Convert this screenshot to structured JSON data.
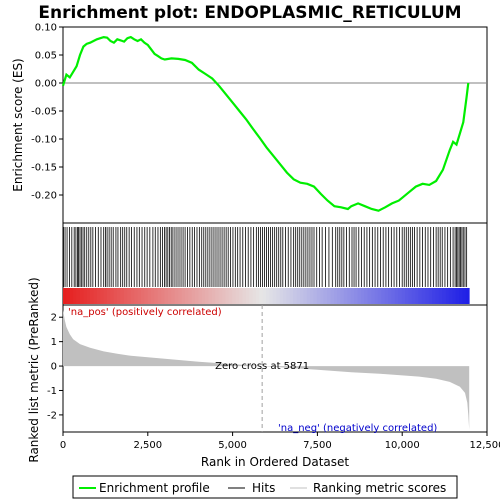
{
  "chart_data": {
    "title": "Enrichment plot: ENDOPLASMIC_RETICULUM",
    "top_panel": {
      "type": "line",
      "ylabel": "Enrichment score (ES)",
      "ylim": [
        -0.25,
        0.1
      ],
      "yticks": [
        "0.10",
        "0.05",
        "0.00",
        "-0.05",
        "-0.10",
        "-0.15",
        "-0.20"
      ],
      "ytick_values": [
        0.1,
        0.05,
        0.0,
        -0.05,
        -0.1,
        -0.15,
        -0.2
      ],
      "line_color": "#00ee00",
      "series": [
        {
          "name": "Enrichment profile",
          "x": [
            0,
            100,
            200,
            300,
            400,
            500,
            600,
            700,
            800,
            900,
            1000,
            1100,
            1200,
            1300,
            1400,
            1500,
            1600,
            1700,
            1800,
            1900,
            2000,
            2100,
            2200,
            2300,
            2400,
            2500,
            2600,
            2700,
            2800,
            2900,
            3000,
            3200,
            3400,
            3600,
            3800,
            4000,
            4200,
            4400,
            4600,
            4800,
            5000,
            5200,
            5400,
            5600,
            5800,
            6000,
            6200,
            6400,
            6600,
            6800,
            7000,
            7200,
            7400,
            7600,
            7800,
            8000,
            8200,
            8400,
            8500,
            8700,
            8900,
            9100,
            9300,
            9500,
            9700,
            9900,
            10000,
            10200,
            10400,
            10600,
            10800,
            11000,
            11200,
            11400,
            11500,
            11600,
            11700,
            11800,
            11900,
            11950
          ],
          "values": [
            -0.005,
            0.015,
            0.01,
            0.02,
            0.03,
            0.05,
            0.065,
            0.07,
            0.072,
            0.075,
            0.078,
            0.08,
            0.082,
            0.081,
            0.075,
            0.072,
            0.078,
            0.076,
            0.074,
            0.08,
            0.082,
            0.078,
            0.075,
            0.078,
            0.072,
            0.068,
            0.06,
            0.052,
            0.048,
            0.044,
            0.042,
            0.044,
            0.043,
            0.041,
            0.036,
            0.024,
            0.016,
            0.008,
            -0.005,
            -0.02,
            -0.035,
            -0.05,
            -0.065,
            -0.082,
            -0.098,
            -0.115,
            -0.13,
            -0.145,
            -0.16,
            -0.172,
            -0.178,
            -0.18,
            -0.185,
            -0.198,
            -0.21,
            -0.22,
            -0.222,
            -0.225,
            -0.22,
            -0.215,
            -0.22,
            -0.225,
            -0.228,
            -0.222,
            -0.215,
            -0.21,
            -0.205,
            -0.195,
            -0.185,
            -0.18,
            -0.182,
            -0.175,
            -0.155,
            -0.12,
            -0.105,
            -0.11,
            -0.09,
            -0.07,
            -0.025,
            0.0
          ]
        }
      ]
    },
    "hits_panel": {
      "hit_positions": [
        15,
        60,
        120,
        190,
        260,
        330,
        380,
        430,
        460,
        500,
        540,
        590,
        640,
        700,
        760,
        820,
        880,
        960,
        1040,
        1120,
        1200,
        1250,
        1300,
        1360,
        1420,
        1480,
        1560,
        1620,
        1700,
        1760,
        1820,
        1880,
        1950,
        2020,
        2100,
        2180,
        2250,
        2330,
        2410,
        2480,
        2560,
        2650,
        2720,
        2800,
        2870,
        2930,
        2990,
        3040,
        3090,
        3140,
        3190,
        3240,
        3300,
        3360,
        3420,
        3480,
        3540,
        3600,
        3670,
        3740,
        3810,
        3880,
        3950,
        4020,
        4090,
        4150,
        4210,
        4270,
        4330,
        4390,
        4450,
        4510,
        4570,
        4630,
        4690,
        4750,
        4810,
        4870,
        4940,
        5010,
        5080,
        5150,
        5220,
        5300,
        5380,
        5460,
        5540,
        5620,
        5700,
        5760,
        5820,
        5880,
        5940,
        6000,
        6060,
        6120,
        6180,
        6240,
        6300,
        6360,
        6420,
        6480,
        6560,
        6640,
        6720,
        6800,
        6860,
        6920,
        6980,
        7040,
        7100,
        7160,
        7220,
        7280,
        7340,
        7400,
        7480,
        7560,
        7640,
        7740,
        7840,
        7940,
        8040,
        8100,
        8160,
        8220,
        8280,
        8360,
        8440,
        8520,
        8580,
        8640,
        8720,
        8800,
        8880,
        8960,
        9040,
        9120,
        9200,
        9280,
        9360,
        9440,
        9520,
        9600,
        9680,
        9760,
        9840,
        9920,
        10000,
        10060,
        10120,
        10180,
        10240,
        10300,
        10360,
        10440,
        10520,
        10600,
        10680,
        10760,
        10840,
        10920,
        11000,
        11060,
        11120,
        11180,
        11260,
        11340,
        11420,
        11500,
        11560,
        11600,
        11640,
        11680,
        11720,
        11760,
        11800,
        11850,
        11900
      ]
    },
    "metric_panel": {
      "ylabel": "Ranked list metric (PreRanked)",
      "ylim": [
        -2.7,
        2.5
      ],
      "yticks": [
        "2",
        "1",
        "0",
        "-1",
        "-2"
      ],
      "ytick_values": [
        2,
        1,
        0,
        -1,
        -2
      ],
      "fill_color": "#c0c0c0",
      "x": [
        0,
        50,
        100,
        200,
        300,
        500,
        800,
        1200,
        1600,
        2000,
        3000,
        4000,
        5000,
        5871,
        6500,
        7500,
        8500,
        9500,
        10500,
        11000,
        11400,
        11700,
        11850,
        11920,
        11950,
        11976
      ],
      "values": [
        2.3,
        1.9,
        1.6,
        1.3,
        1.1,
        0.9,
        0.75,
        0.6,
        0.5,
        0.42,
        0.3,
        0.18,
        0.08,
        0.0,
        -0.06,
        -0.15,
        -0.25,
        -0.33,
        -0.43,
        -0.52,
        -0.65,
        -0.85,
        -1.1,
        -1.5,
        -2.0,
        -2.6
      ],
      "zero_cross_label": "Zero cross at 5871",
      "zero_cross_x": 5871,
      "pos_label": "'na_pos' (positively correlated)",
      "neg_label": "'na_neg' (negatively correlated)"
    },
    "x_axis": {
      "label": "Rank in Ordered Dataset",
      "xlim": [
        0,
        12500
      ],
      "ticks": [
        "0",
        "2,500",
        "5,000",
        "7,500",
        "10,000",
        "12,500"
      ],
      "tick_values": [
        0,
        2500,
        5000,
        7500,
        10000,
        12500
      ],
      "n_genes": 11976
    },
    "legend": {
      "placement": "bottom",
      "entries": [
        {
          "label": "Enrichment profile",
          "color": "#00ee00"
        },
        {
          "label": "Hits",
          "color": "#000000"
        },
        {
          "label": "Ranking metric scores",
          "color": "#c0c0c0"
        }
      ]
    }
  }
}
